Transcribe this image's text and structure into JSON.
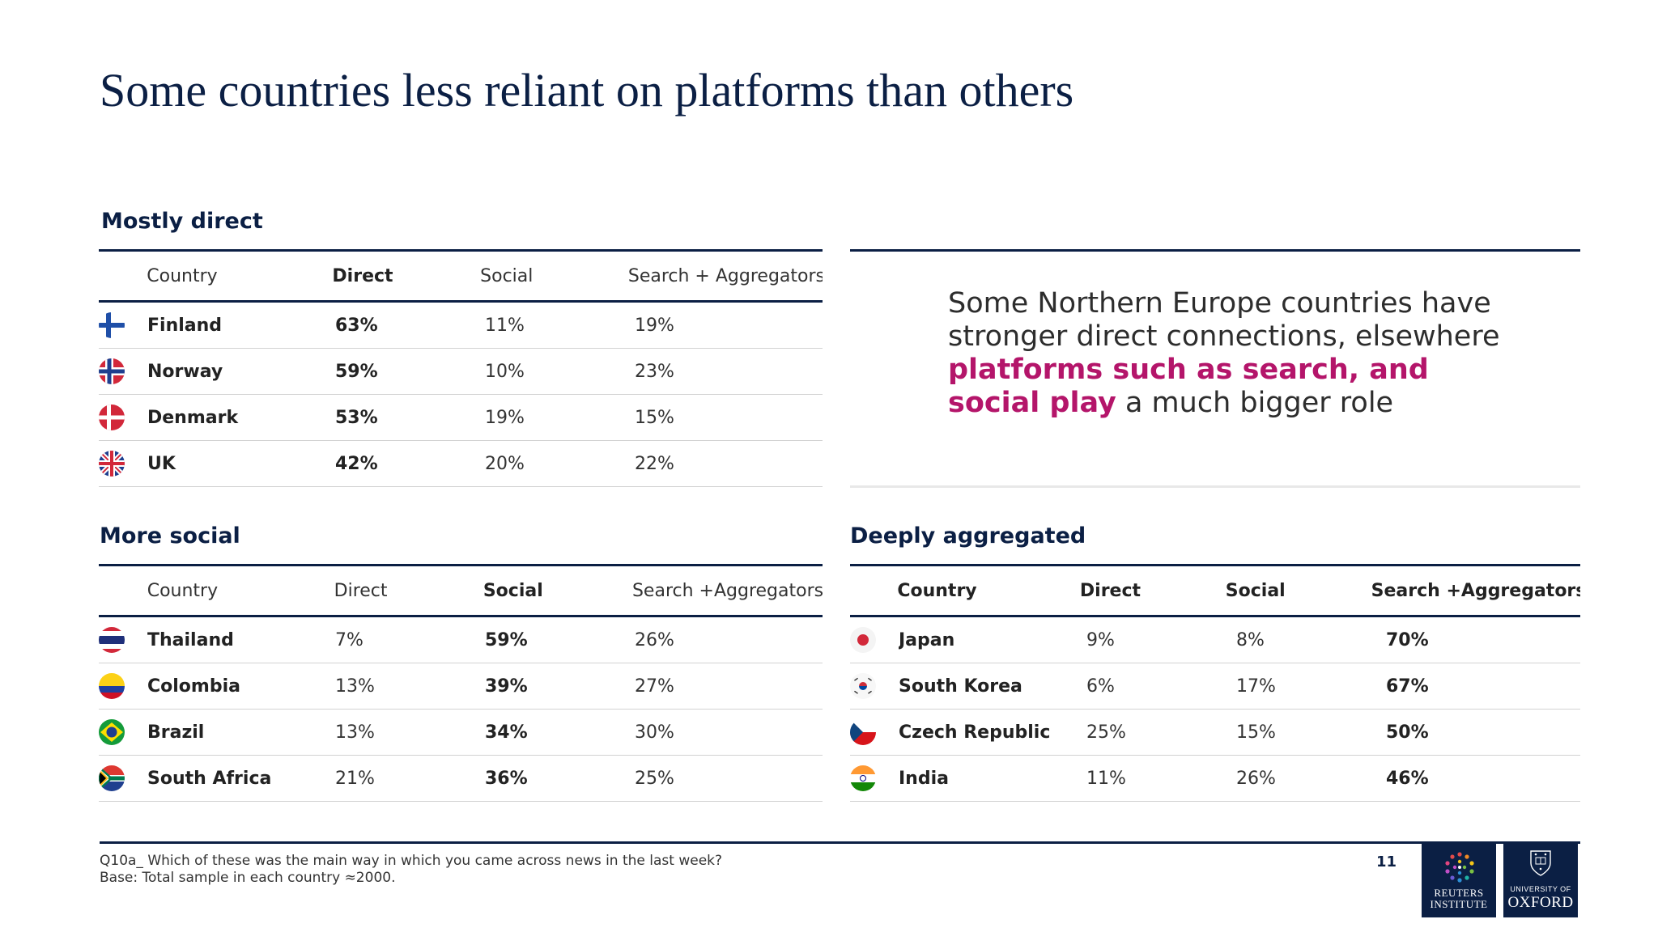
{
  "title": "Some countries less reliant on platforms than others",
  "columns_full": {
    "country": "Country",
    "direct": "Direct",
    "social": "Social",
    "search_a": "Search + Aggregators",
    "search_b": "Search +Aggregators"
  },
  "mostly_direct": {
    "heading": "Mostly direct",
    "rows": [
      {
        "country": "Finland",
        "direct": "63%",
        "social": "11%",
        "search": "19%"
      },
      {
        "country": "Norway",
        "direct": "59%",
        "social": "10%",
        "search": "23%"
      },
      {
        "country": "Denmark",
        "direct": "53%",
        "social": "19%",
        "search": "15%"
      },
      {
        "country": "UK",
        "direct": "42%",
        "social": "20%",
        "search": "22%"
      }
    ]
  },
  "more_social": {
    "heading": "More social",
    "rows": [
      {
        "country": "Thailand",
        "direct": "7%",
        "social": "59%",
        "search": "26%"
      },
      {
        "country": "Colombia",
        "direct": "13%",
        "social": "39%",
        "search": "27%"
      },
      {
        "country": "Brazil",
        "direct": "13%",
        "social": "34%",
        "search": "30%"
      },
      {
        "country": "South Africa",
        "direct": "21%",
        "social": "36%",
        "search": "25%"
      }
    ]
  },
  "deeply_aggregated": {
    "heading": "Deeply aggregated",
    "rows": [
      {
        "country": "Japan",
        "direct": "9%",
        "social": "8%",
        "search": "70%"
      },
      {
        "country": "South Korea",
        "direct": "6%",
        "social": "17%",
        "search": "67%"
      },
      {
        "country": "Czech Republic",
        "direct": "25%",
        "social": "15%",
        "search": "50%"
      },
      {
        "country": "India",
        "direct": "11%",
        "social": "26%",
        "search": "46%"
      }
    ]
  },
  "callout": {
    "part1": "Some Northern Europe countries have stronger direct connections, elsewhere ",
    "highlight": "platforms such as search, and social play",
    "part2": " a much bigger role"
  },
  "footnote": {
    "line1": "Q10a_ Which of these was the main way in which you came across news in the last week?",
    "line2": "Base: Total sample in each country ≈2000."
  },
  "page_number": "11",
  "logos": {
    "reuters_line1": "REUTERS",
    "reuters_line2": "INSTITUTE",
    "oxford_line1": "UNIVERSITY OF",
    "oxford_line2": "OXFORD"
  },
  "colors": {
    "navy": "#0b1f44",
    "accent": "#b4156a"
  },
  "flags": [
    "finland-flag-icon",
    "norway-flag-icon",
    "denmark-flag-icon",
    "uk-flag-icon",
    "thailand-flag-icon",
    "colombia-flag-icon",
    "brazil-flag-icon",
    "south-africa-flag-icon",
    "japan-flag-icon",
    "south-korea-flag-icon",
    "czech-flag-icon",
    "india-flag-icon"
  ]
}
